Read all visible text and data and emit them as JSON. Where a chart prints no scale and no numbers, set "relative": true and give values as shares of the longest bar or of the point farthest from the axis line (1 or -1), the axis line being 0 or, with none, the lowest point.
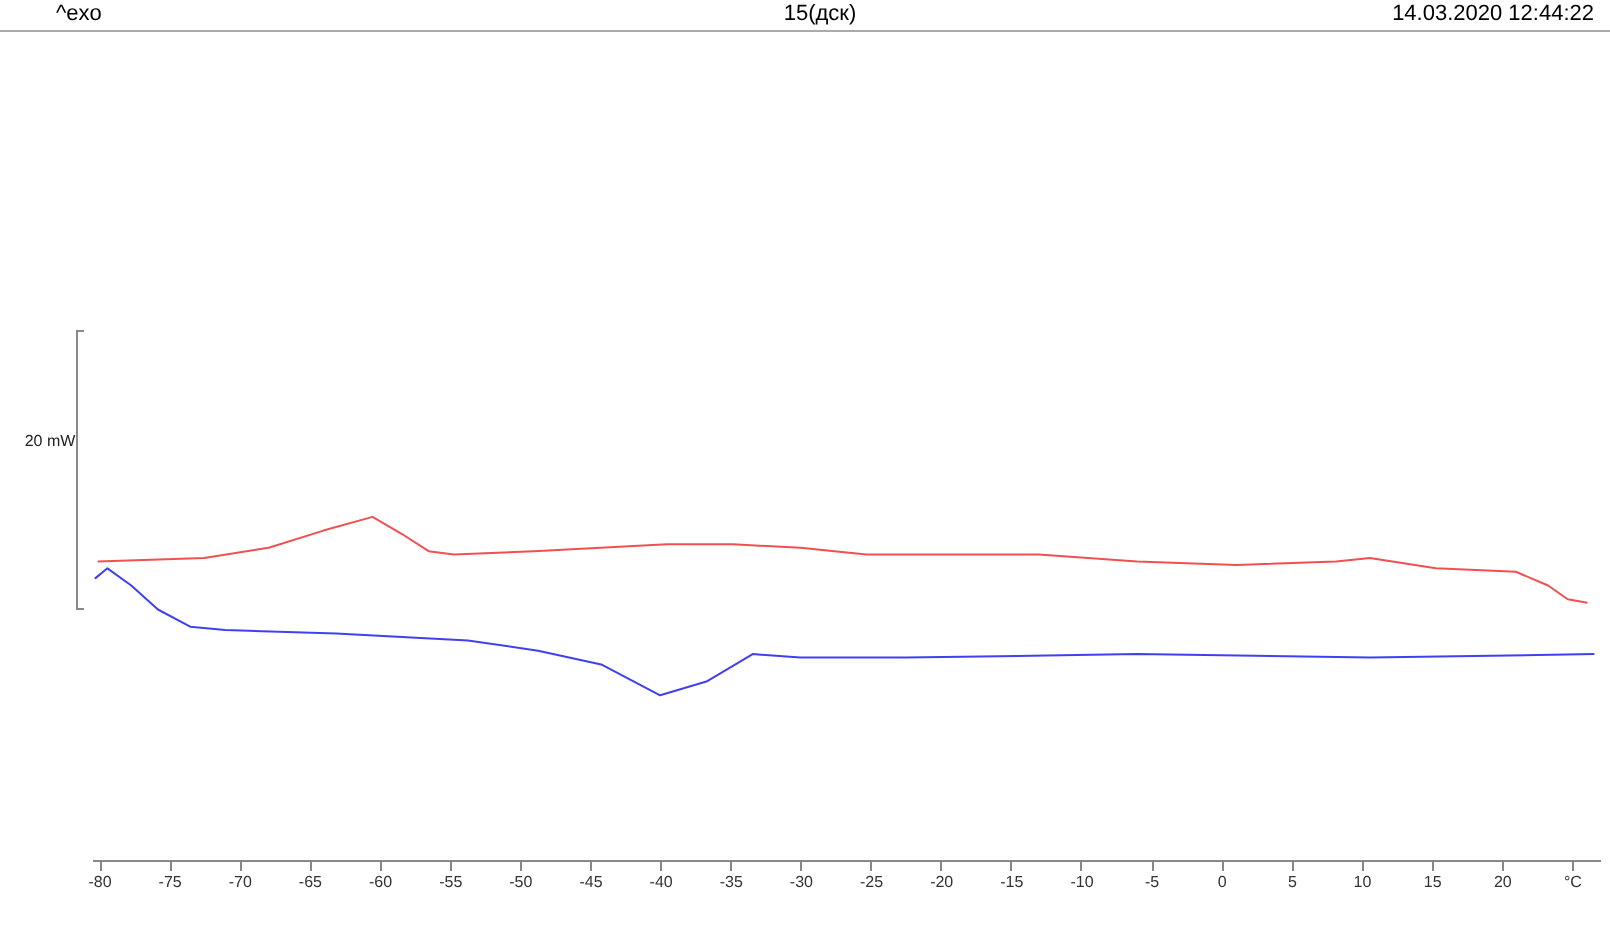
{
  "chart_data": {
    "type": "line",
    "title": "15(дск)",
    "annotations": [
      "^exo",
      "14.03.2020 12:44:22"
    ],
    "ylabel": "20 mW",
    "relative": true,
    "xlim": [
      -80.5,
      27
    ],
    "xticks": [
      -80,
      -75,
      -70,
      -65,
      -60,
      -55,
      -50,
      -45,
      -40,
      -35,
      -30,
      -25,
      -20,
      -15,
      -10,
      -5,
      0,
      5,
      10,
      15,
      20,
      {
        "value": 25,
        "label": "°C"
      }
    ],
    "series": [
      {
        "color": "#f05050",
        "x": [
          -80.1,
          -72.5,
          -67.9,
          -64.0,
          -60.5,
          -58.4,
          -56.5,
          -54.7,
          -49.0,
          -39.5,
          -34.8,
          -30.0,
          -25.3,
          -20.1,
          -13.0,
          -6.0,
          1.1,
          8.2,
          10.6,
          15.3,
          21.0,
          23.3,
          24.7,
          26.1
        ],
        "values": [
          0.87,
          0.88,
          0.91,
          0.96,
          1.0,
          0.95,
          0.9,
          0.89,
          0.9,
          0.92,
          0.92,
          0.91,
          0.89,
          0.89,
          0.89,
          0.87,
          0.86,
          0.87,
          0.88,
          0.85,
          0.84,
          0.8,
          0.76,
          0.75
        ]
      },
      {
        "color": "#4040f0",
        "x": [
          -80.3,
          -79.4,
          -77.7,
          -75.8,
          -73.5,
          -71.0,
          -63.1,
          -53.7,
          -48.7,
          -44.2,
          -40.0,
          -36.7,
          -33.4,
          -30.0,
          -22.5,
          -6.0,
          10.6,
          26.6
        ],
        "values": [
          0.82,
          0.85,
          0.8,
          0.73,
          0.68,
          0.67,
          0.66,
          0.64,
          0.61,
          0.57,
          0.48,
          0.52,
          0.6,
          0.59,
          0.59,
          0.6,
          0.59,
          0.6
        ]
      }
    ]
  }
}
